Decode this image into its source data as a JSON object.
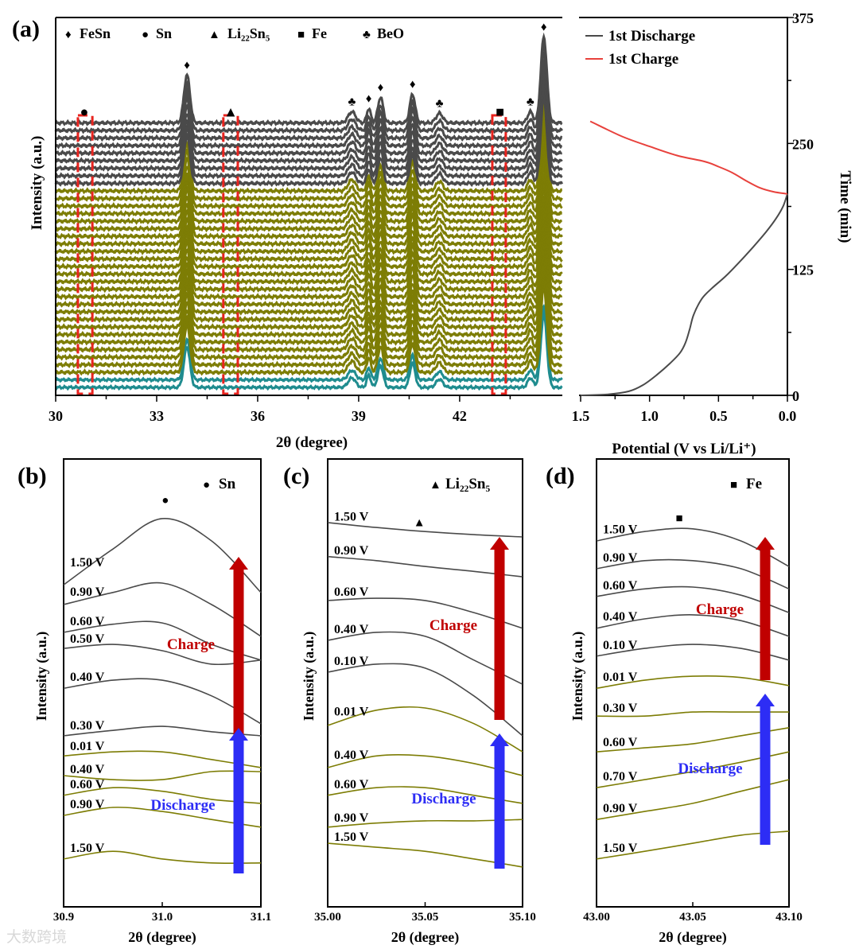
{
  "watermark": "大数跨境",
  "colors": {
    "teal": "#1f8c8f",
    "olive": "#7d7d05",
    "gray": "#4a4a4a",
    "discharge_curve": "#4a4a4a",
    "charge_curve": "#e8413c",
    "box_red": "#e8231e",
    "charge_arrow": "#c00000",
    "discharge_arrow": "#2d2df5"
  },
  "chart_data": [
    {
      "panel": "(a)",
      "type": "line",
      "xlabel": "2θ (degree)",
      "ylabel": "Intensity (a.u.)",
      "xlim": [
        30,
        45
      ],
      "xticks": [
        "30",
        "33",
        "36",
        "39",
        "42"
      ],
      "xtick_values": [
        30,
        33,
        36,
        39,
        42
      ],
      "legend": [
        {
          "symbol": "♦",
          "label": "FeSn"
        },
        {
          "symbol": "●",
          "label": "Sn"
        },
        {
          "symbol": "▲",
          "label": "Li₂₂Sn₅"
        },
        {
          "symbol": "■",
          "label": "Fe"
        },
        {
          "symbol": "♣",
          "label": "BeO"
        }
      ],
      "peaks": [
        {
          "pos": 33.9,
          "height": 60,
          "width": 0.09,
          "marker": "♦"
        },
        {
          "pos": 38.8,
          "height": 14,
          "width": 0.11,
          "marker": "♣"
        },
        {
          "pos": 39.3,
          "height": 18,
          "width": 0.06,
          "marker": "♦"
        },
        {
          "pos": 39.65,
          "height": 32,
          "width": 0.08,
          "marker": "♦"
        },
        {
          "pos": 40.6,
          "height": 36,
          "width": 0.08,
          "marker": "♦"
        },
        {
          "pos": 41.4,
          "height": 12,
          "width": 0.1,
          "marker": "♣"
        },
        {
          "pos": 44.1,
          "height": 14,
          "width": 0.08,
          "marker": "♣"
        },
        {
          "pos": 44.5,
          "height": 108,
          "width": 0.09,
          "marker": "♦"
        }
      ],
      "phase_markers": [
        {
          "pos": 30.85,
          "marker": "●"
        },
        {
          "pos": 35.2,
          "marker": "▲"
        },
        {
          "pos": 43.2,
          "marker": "■"
        }
      ],
      "highlight_ranges": [
        [
          30.66,
          31.09
        ],
        [
          34.98,
          35.41
        ],
        [
          42.97,
          43.37
        ]
      ],
      "trace_groups": [
        {
          "color_key": "teal",
          "count": 2
        },
        {
          "color_key": "olive",
          "count": 25
        },
        {
          "color_key": "gray",
          "count": 9
        }
      ]
    },
    {
      "panel": "(a) right",
      "type": "line",
      "xlabel": "Potential (V vs Li/Li⁺)",
      "ylabel": "Time (min)",
      "xlim": [
        1.5,
        0.0
      ],
      "ylim": [
        0,
        375
      ],
      "xticks": [
        "1.5",
        "1.0",
        "0.5",
        "0.0"
      ],
      "xtick_values": [
        1.5,
        1.0,
        0.5,
        0.0
      ],
      "yticks": [
        "0",
        "125",
        "250",
        "375"
      ],
      "ytick_values": [
        0,
        125,
        250,
        375
      ],
      "series": [
        {
          "name": "1st Discharge",
          "color_key": "discharge_curve",
          "points": [
            [
              1.5,
              0
            ],
            [
              1.3,
              1
            ],
            [
              1.15,
              4
            ],
            [
              1.05,
              10
            ],
            [
              0.95,
              20
            ],
            [
              0.85,
              32
            ],
            [
              0.78,
              42
            ],
            [
              0.74,
              52
            ],
            [
              0.71,
              65
            ],
            [
              0.68,
              80
            ],
            [
              0.62,
              96
            ],
            [
              0.55,
              106
            ],
            [
              0.45,
              118
            ],
            [
              0.35,
              132
            ],
            [
              0.25,
              147
            ],
            [
              0.15,
              163
            ],
            [
              0.08,
              176
            ],
            [
              0.03,
              188
            ],
            [
              0.0,
              200
            ]
          ]
        },
        {
          "name": "1st Charge",
          "color_key": "charge_curve",
          "points": [
            [
              0.0,
              200
            ],
            [
              0.1,
              202
            ],
            [
              0.2,
              206
            ],
            [
              0.3,
              213
            ],
            [
              0.4,
              221
            ],
            [
              0.5,
              227
            ],
            [
              0.6,
              232
            ],
            [
              0.8,
              238
            ],
            [
              1.0,
              247
            ],
            [
              1.2,
              257
            ],
            [
              1.43,
              272
            ]
          ]
        }
      ]
    },
    {
      "panel": "(b)",
      "type": "line",
      "legend": {
        "symbol": "●",
        "label": "Sn"
      },
      "peak_marker": {
        "symbol": "●",
        "x": 31.003,
        "y": 90
      },
      "xlabel": "2θ (degree)",
      "ylabel": "Intensity (a.u.)",
      "xlim": [
        30.9,
        31.1
      ],
      "ylim": [
        0,
        100
      ],
      "xticks": [
        "30.9",
        "31.0",
        "31.1"
      ],
      "xtick_values": [
        30.9,
        31.0,
        31.1
      ],
      "x": [
        30.9,
        30.95,
        31.0,
        31.05,
        31.1
      ],
      "charge_label": "Charge",
      "discharge_label": "Discharge",
      "series": [
        {
          "label": "1.50 V",
          "phase": "charge",
          "values": [
            71.9,
            79.9,
            86.7,
            81.7,
            70.2
          ]
        },
        {
          "label": "0.90 V",
          "phase": "charge",
          "values": [
            67.5,
            70.2,
            72.3,
            67.5,
            60.4
          ]
        },
        {
          "label": "0.60 V",
          "phase": "charge",
          "values": [
            61.3,
            63.1,
            63.4,
            58.6,
            55.1
          ]
        },
        {
          "label": "0.50 V",
          "phase": "charge",
          "values": [
            57.7,
            58.6,
            57.2,
            54.2,
            55.1
          ]
        },
        {
          "label": "0.40 V",
          "phase": "charge",
          "values": [
            48.8,
            50.6,
            50.6,
            47.1,
            40.9
          ]
        },
        {
          "label": "0.30 V",
          "phase": "charge",
          "values": [
            38.2,
            39.4,
            40.3,
            39.1,
            38.2
          ]
        },
        {
          "label": "0.01 V",
          "phase": "discharge",
          "values": [
            33.7,
            34.6,
            34.6,
            32.9,
            31.1
          ]
        },
        {
          "label": "0.40 V",
          "phase": "discharge",
          "values": [
            29.3,
            28.4,
            28.4,
            30.2,
            30.2
          ]
        },
        {
          "label": "0.60 V",
          "phase": "discharge",
          "values": [
            24.9,
            26.6,
            25.8,
            24.0,
            23.1
          ]
        },
        {
          "label": "0.90 V",
          "phase": "discharge",
          "values": [
            20.4,
            22.2,
            21.3,
            19.5,
            17.8
          ]
        },
        {
          "label": "1.50 V",
          "phase": "discharge",
          "values": [
            10.7,
            12.4,
            10.7,
            9.8,
            9.8
          ]
        }
      ]
    },
    {
      "panel": "(c)",
      "type": "line",
      "legend": {
        "symbol": "▲",
        "label": "Li₂₂Sn₅"
      },
      "peak_marker": {
        "symbol": "▲",
        "x": 35.047,
        "y": 85
      },
      "xlabel": "2θ (degree)",
      "ylabel": "Intensity (a.u.)",
      "xlim": [
        35.0,
        35.1
      ],
      "ylim": [
        0,
        100
      ],
      "xticks": [
        "35.00",
        "35.05",
        "35.10"
      ],
      "xtick_values": [
        35.0,
        35.05,
        35.1
      ],
      "x": [
        35.0,
        35.025,
        35.05,
        35.075,
        35.1
      ],
      "charge_label": "Charge",
      "discharge_label": "Discharge",
      "series": [
        {
          "label": "1.50 V",
          "phase": "charge",
          "values": [
            85.8,
            84.7,
            83.8,
            83.1,
            82.6
          ]
        },
        {
          "label": "0.90 V",
          "phase": "charge",
          "values": [
            78.2,
            77.3,
            76.0,
            74.9,
            73.7
          ]
        },
        {
          "label": "0.60 V",
          "phase": "charge",
          "values": [
            68.4,
            68.9,
            68.4,
            65.7,
            62.2
          ]
        },
        {
          "label": "0.40 V",
          "phase": "charge",
          "values": [
            59.5,
            61.3,
            60.4,
            55.1,
            49.7
          ]
        },
        {
          "label": "0.10 V",
          "phase": "charge",
          "values": [
            52.4,
            54.2,
            53.3,
            47.1,
            38.2
          ]
        },
        {
          "label": "0.01 V",
          "phase": "discharge",
          "values": [
            40.5,
            43.9,
            44.4,
            40.9,
            34.6
          ]
        },
        {
          "label": "0.40 V",
          "phase": "discharge",
          "values": [
            31.1,
            33.7,
            33.7,
            32.0,
            29.3
          ]
        },
        {
          "label": "0.60 V",
          "phase": "discharge",
          "values": [
            24.9,
            26.6,
            26.6,
            24.9,
            23.1
          ]
        },
        {
          "label": "0.90 V",
          "phase": "discharge",
          "values": [
            17.8,
            18.7,
            19.2,
            19.2,
            19.5
          ]
        },
        {
          "label": "1.50 V",
          "phase": "discharge",
          "values": [
            14.2,
            13.3,
            12.4,
            10.7,
            8.9
          ]
        }
      ]
    },
    {
      "panel": "(d)",
      "type": "line",
      "legend": {
        "symbol": "■",
        "label": "Fe"
      },
      "peak_marker": {
        "symbol": "■",
        "x": 43.043,
        "y": 86
      },
      "xlabel": "2θ (degree)",
      "ylabel": "Intensity (a.u.)",
      "xlim": [
        43.0,
        43.1
      ],
      "ylim": [
        0,
        100
      ],
      "xticks": [
        "43.00",
        "43.05",
        "43.10"
      ],
      "xtick_values": [
        43.0,
        43.05,
        43.1
      ],
      "x": [
        43.0,
        43.025,
        43.05,
        43.075,
        43.1
      ],
      "charge_label": "Charge",
      "discharge_label": "Discharge",
      "series": [
        {
          "label": "1.50 V",
          "phase": "charge",
          "values": [
            81.7,
            83.8,
            84.4,
            81.7,
            76.0
          ]
        },
        {
          "label": "0.90 V",
          "phase": "charge",
          "values": [
            75.5,
            77.3,
            77.3,
            75.5,
            71.0
          ]
        },
        {
          "label": "0.60 V",
          "phase": "charge",
          "values": [
            69.3,
            71.0,
            71.4,
            69.6,
            65.7
          ]
        },
        {
          "label": "0.40 V",
          "phase": "charge",
          "values": [
            62.2,
            64.3,
            65.2,
            63.9,
            60.4
          ]
        },
        {
          "label": "0.10 V",
          "phase": "charge",
          "values": [
            56.0,
            57.7,
            58.6,
            57.7,
            55.1
          ]
        },
        {
          "label": "0.01 V",
          "phase": "discharge",
          "values": [
            48.8,
            50.6,
            51.5,
            51.2,
            49.4
          ]
        },
        {
          "label": "0.30 V",
          "phase": "discharge",
          "values": [
            42.6,
            42.6,
            43.5,
            43.5,
            43.5
          ]
        },
        {
          "label": "0.60 V",
          "phase": "discharge",
          "values": [
            34.6,
            35.5,
            36.4,
            38.2,
            40.0
          ]
        },
        {
          "label": "0.70 V",
          "phase": "discharge",
          "values": [
            26.6,
            28.4,
            30.2,
            32.3,
            34.6
          ]
        },
        {
          "label": "0.90 V",
          "phase": "discharge",
          "values": [
            19.5,
            21.3,
            23.1,
            25.8,
            28.4
          ]
        },
        {
          "label": "1.50 V",
          "phase": "discharge",
          "values": [
            10.7,
            12.4,
            14.2,
            16.0,
            16.9
          ]
        }
      ]
    }
  ]
}
